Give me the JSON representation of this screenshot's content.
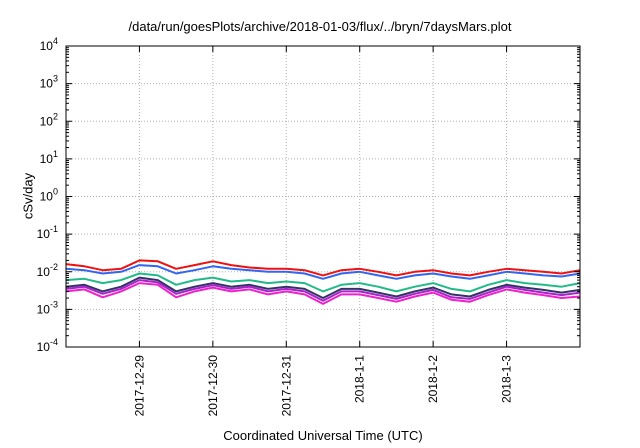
{
  "chart_data": {
    "type": "line",
    "title": "/data/run/goesPlots/archive/2018-01-03/flux/../bryn/7daysMars.plot",
    "xlabel": "Coordinated Universal Time (UTC)",
    "ylabel": "cSv/day",
    "yscale": "log",
    "ylim": [
      0.0001,
      10000
    ],
    "xlim": [
      "2017-12-28 00:00",
      "2018-01-04 00:00"
    ],
    "grid": true,
    "y_ticks": [
      {
        "base": "10",
        "exp": "4"
      },
      {
        "base": "10",
        "exp": "3"
      },
      {
        "base": "10",
        "exp": "2"
      },
      {
        "base": "10",
        "exp": "1"
      },
      {
        "base": "10",
        "exp": "0"
      },
      {
        "base": "10",
        "exp": "-1"
      },
      {
        "base": "10",
        "exp": "-2"
      },
      {
        "base": "10",
        "exp": "-3"
      },
      {
        "base": "10",
        "exp": "-4"
      }
    ],
    "x_ticks": [
      "2017-12-29",
      "2017-12-30",
      "2017-12-31",
      "2018-1-1",
      "2018-1-2",
      "2018-1-3"
    ],
    "x": [
      "2017-12-28 00:00",
      "2017-12-28 06:00",
      "2017-12-28 12:00",
      "2017-12-28 18:00",
      "2017-12-29 00:00",
      "2017-12-29 06:00",
      "2017-12-29 12:00",
      "2017-12-29 18:00",
      "2017-12-30 00:00",
      "2017-12-30 06:00",
      "2017-12-30 12:00",
      "2017-12-30 18:00",
      "2017-12-31 00:00",
      "2017-12-31 06:00",
      "2017-12-31 12:00",
      "2017-12-31 18:00",
      "2018-01-01 00:00",
      "2018-01-01 06:00",
      "2018-01-01 12:00",
      "2018-01-01 18:00",
      "2018-01-02 00:00",
      "2018-01-02 06:00",
      "2018-01-02 12:00",
      "2018-01-02 18:00",
      "2018-01-03 00:00",
      "2018-01-03 06:00",
      "2018-01-03 12:00",
      "2018-01-03 18:00",
      "2018-01-04 00:00"
    ],
    "series": [
      {
        "color": "#ee1111",
        "values": [
          0.016,
          0.014,
          0.011,
          0.012,
          0.02,
          0.019,
          0.012,
          0.015,
          0.019,
          0.015,
          0.013,
          0.012,
          0.012,
          0.011,
          0.008,
          0.011,
          0.012,
          0.01,
          0.008,
          0.01,
          0.011,
          0.009,
          0.008,
          0.01,
          0.012,
          0.011,
          0.01,
          0.009,
          0.011
        ]
      },
      {
        "color": "#3366ee",
        "values": [
          0.012,
          0.011,
          0.009,
          0.01,
          0.015,
          0.014,
          0.009,
          0.011,
          0.014,
          0.012,
          0.011,
          0.01,
          0.01,
          0.009,
          0.0065,
          0.009,
          0.01,
          0.008,
          0.0065,
          0.008,
          0.009,
          0.0075,
          0.0065,
          0.008,
          0.01,
          0.009,
          0.008,
          0.0075,
          0.009
        ]
      },
      {
        "color": "#22bb88",
        "values": [
          0.006,
          0.0065,
          0.005,
          0.006,
          0.009,
          0.008,
          0.0045,
          0.006,
          0.007,
          0.0055,
          0.006,
          0.005,
          0.0055,
          0.005,
          0.003,
          0.0045,
          0.005,
          0.004,
          0.003,
          0.004,
          0.005,
          0.0035,
          0.003,
          0.0045,
          0.006,
          0.005,
          0.0045,
          0.004,
          0.005
        ]
      },
      {
        "color": "#333366",
        "values": [
          0.004,
          0.0045,
          0.003,
          0.004,
          0.007,
          0.006,
          0.003,
          0.004,
          0.005,
          0.004,
          0.0045,
          0.0035,
          0.004,
          0.0035,
          0.002,
          0.0035,
          0.0035,
          0.0028,
          0.0022,
          0.003,
          0.0038,
          0.0025,
          0.0022,
          0.0033,
          0.0045,
          0.0038,
          0.0033,
          0.0028,
          0.0033
        ]
      },
      {
        "color": "#aa22cc",
        "values": [
          0.0035,
          0.004,
          0.0026,
          0.0035,
          0.006,
          0.0052,
          0.0026,
          0.0035,
          0.0044,
          0.0035,
          0.004,
          0.003,
          0.0035,
          0.003,
          0.0017,
          0.003,
          0.003,
          0.0024,
          0.0019,
          0.0026,
          0.0033,
          0.0021,
          0.0019,
          0.0028,
          0.004,
          0.0033,
          0.0028,
          0.0024,
          0.0028
        ]
      },
      {
        "color": "#ee22cc",
        "values": [
          0.003,
          0.0034,
          0.0021,
          0.003,
          0.005,
          0.0045,
          0.0021,
          0.003,
          0.0038,
          0.003,
          0.0034,
          0.0025,
          0.003,
          0.0025,
          0.0014,
          0.0025,
          0.0025,
          0.002,
          0.0016,
          0.0022,
          0.0028,
          0.0018,
          0.0016,
          0.0024,
          0.0034,
          0.0028,
          0.0024,
          0.002,
          0.0022
        ]
      }
    ]
  }
}
